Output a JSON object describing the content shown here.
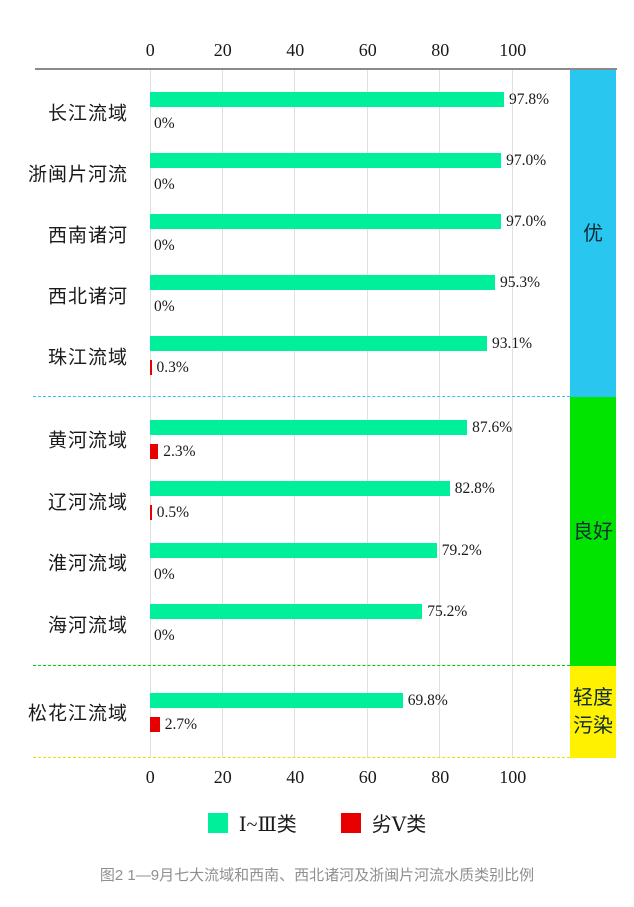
{
  "caption": "图2  1—9月七大流域和西南、西北诸河及浙闽片河流水质类别比例",
  "chart_data": {
    "type": "bar",
    "orientation": "horizontal",
    "title": "",
    "xlabel": "",
    "ylabel": "",
    "axis_range": [
      0,
      100
    ],
    "x_ticks": [
      "0",
      "20",
      "40",
      "60",
      "80",
      "100"
    ],
    "grid": true,
    "legend_position": "bottom",
    "legend": [
      {
        "label": "Ⅰ~Ⅲ类",
        "color": "#00ef9b"
      },
      {
        "label": "劣Ⅴ类",
        "color": "#e80000"
      }
    ],
    "colors": {
      "bar_class1_3": "#00ef9b",
      "bar_worse5": "#e80000",
      "band_excellent": "#29c6f0",
      "band_good": "#00e400",
      "band_light_pollution": "#fff100",
      "axis_line": "#8a8a8a",
      "gridline": "#e0e0e0"
    },
    "sections": [
      {
        "label": "优",
        "color": "#29c6f0",
        "rows": [
          {
            "category": "长江流域",
            "class1_3": 97.8,
            "class1_3_label": "97.8%",
            "worse5": 0,
            "worse5_label": "0%"
          },
          {
            "category": "浙闽片河流",
            "class1_3": 97.0,
            "class1_3_label": "97.0%",
            "worse5": 0,
            "worse5_label": "0%"
          },
          {
            "category": "西南诸河",
            "class1_3": 97.0,
            "class1_3_label": "97.0%",
            "worse5": 0,
            "worse5_label": "0%"
          },
          {
            "category": "西北诸河",
            "class1_3": 95.3,
            "class1_3_label": "95.3%",
            "worse5": 0,
            "worse5_label": "0%"
          },
          {
            "category": "珠江流域",
            "class1_3": 93.1,
            "class1_3_label": "93.1%",
            "worse5": 0.3,
            "worse5_label": "0.3%"
          }
        ]
      },
      {
        "label": "良好",
        "color": "#00e400",
        "rows": [
          {
            "category": "黄河流域",
            "class1_3": 87.6,
            "class1_3_label": "87.6%",
            "worse5": 2.3,
            "worse5_label": "2.3%"
          },
          {
            "category": "辽河流域",
            "class1_3": 82.8,
            "class1_3_label": "82.8%",
            "worse5": 0.5,
            "worse5_label": "0.5%"
          },
          {
            "category": "淮河流域",
            "class1_3": 79.2,
            "class1_3_label": "79.2%",
            "worse5": 0,
            "worse5_label": "0%"
          },
          {
            "category": "海河流域",
            "class1_3": 75.2,
            "class1_3_label": "75.2%",
            "worse5": 0,
            "worse5_label": "0%"
          }
        ]
      },
      {
        "label": "轻度\n污染",
        "color": "#fff100",
        "rows": [
          {
            "category": "松花江流域",
            "class1_3": 69.8,
            "class1_3_label": "69.8%",
            "worse5": 2.7,
            "worse5_label": "2.7%"
          }
        ]
      }
    ]
  }
}
